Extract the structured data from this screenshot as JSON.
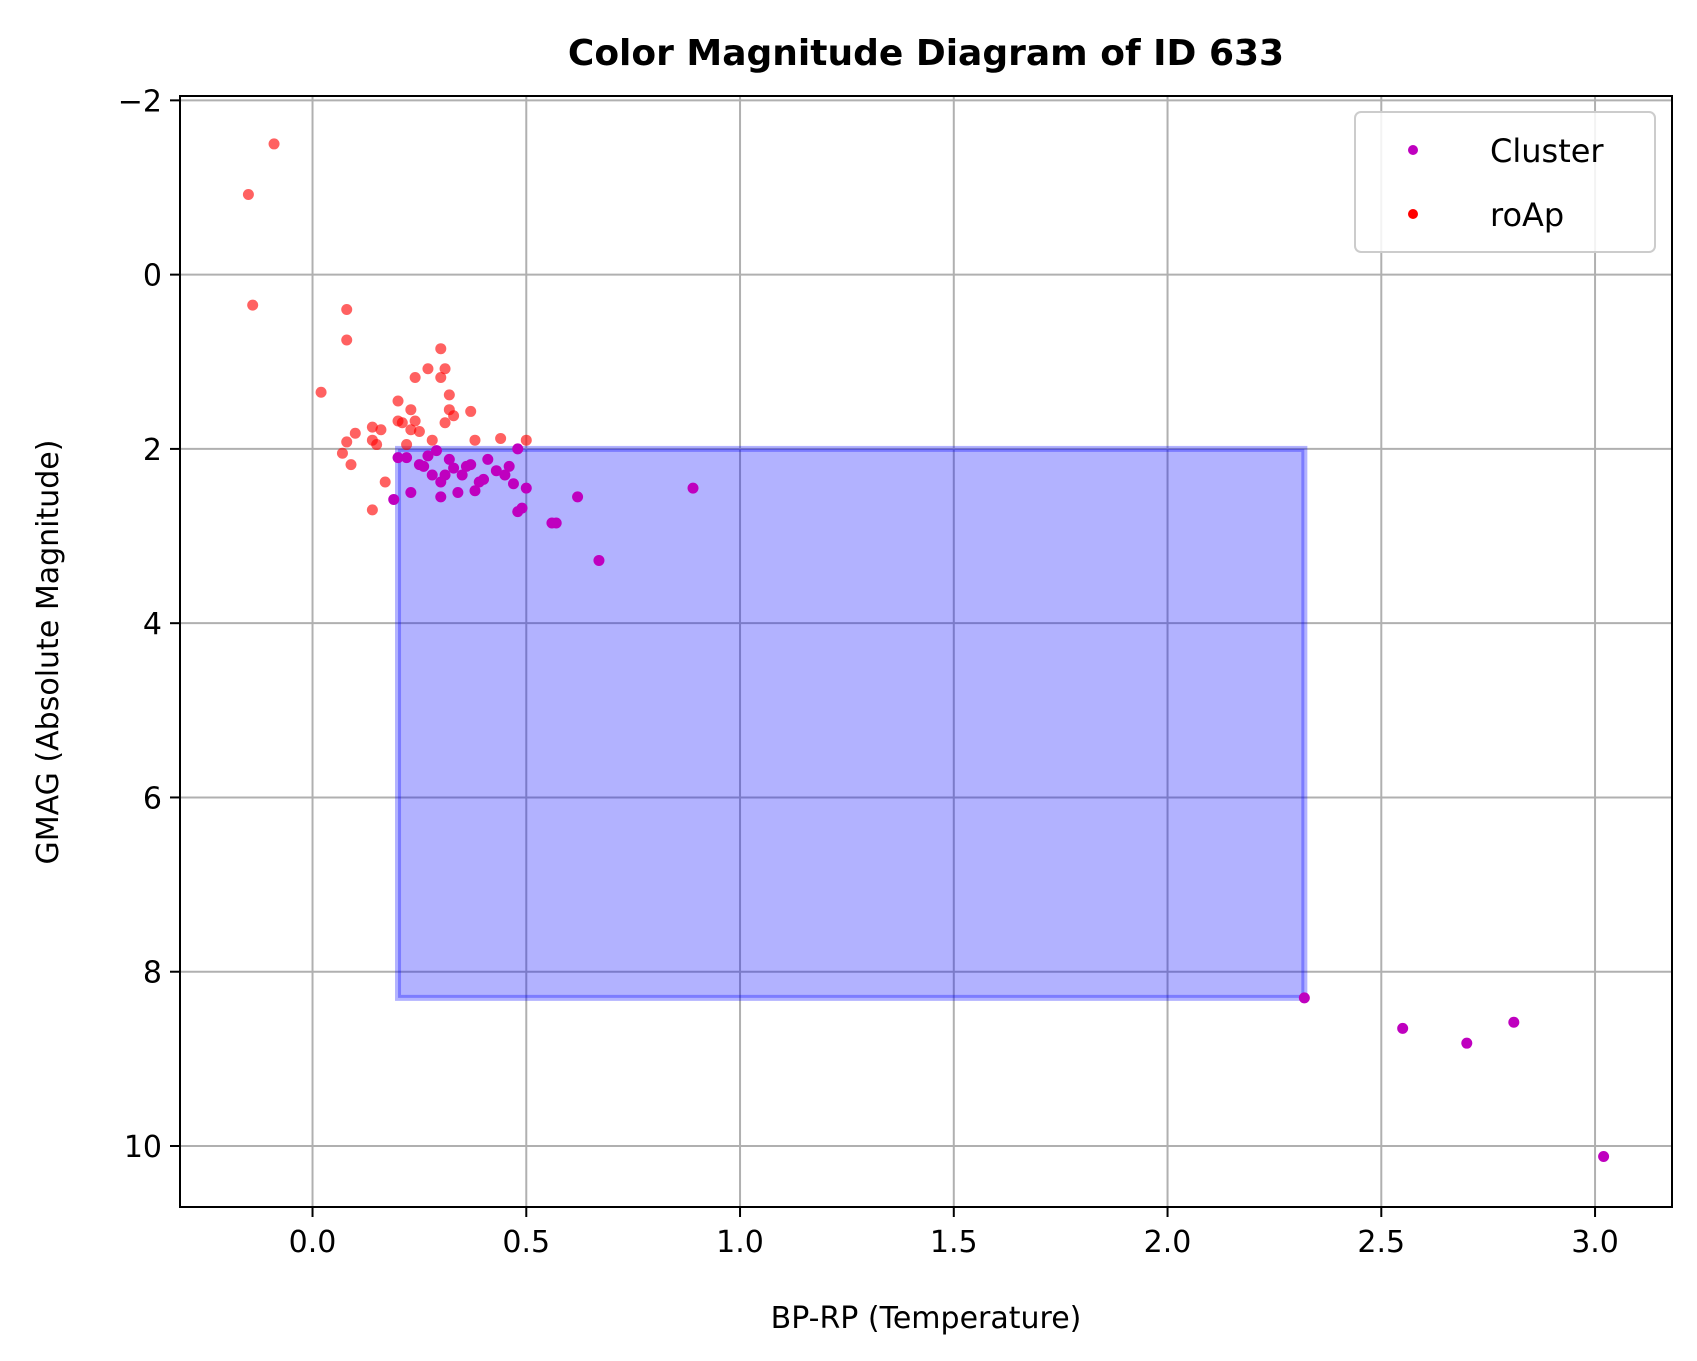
{
  "chart_data": {
    "type": "scatter",
    "title": "Color Magnitude Diagram of ID 633",
    "xlabel": "BP-RP (Temperature)",
    "ylabel": "GMAG (Absolute Magnitude)",
    "xlim": [
      -0.31,
      3.18
    ],
    "ylim": [
      10.7,
      -2.05
    ],
    "y_inverted": true,
    "grid": true,
    "legend_position": "top-right",
    "x_ticks": [
      0.0,
      0.5,
      1.0,
      1.5,
      2.0,
      2.5,
      3.0
    ],
    "x_tick_labels": [
      "0.0",
      "0.5",
      "1.0",
      "1.5",
      "2.0",
      "2.5",
      "3.0"
    ],
    "y_ticks": [
      -2,
      0,
      2,
      4,
      6,
      8,
      10
    ],
    "y_tick_labels": [
      "−2",
      "0",
      "2",
      "4",
      "6",
      "8",
      "10"
    ],
    "region": {
      "x0": 0.2,
      "x1": 2.32,
      "y0": 2.0,
      "y1": 8.3,
      "color": "#0000ff",
      "opacity": 0.3
    },
    "series": [
      {
        "name": "Cluster",
        "color": "#bf00bf",
        "points": [
          [
            2.32,
            8.3
          ],
          [
            2.55,
            8.65
          ],
          [
            2.7,
            8.82
          ],
          [
            2.81,
            8.58
          ],
          [
            3.02,
            10.12
          ],
          [
            0.89,
            2.45
          ],
          [
            0.67,
            3.28
          ],
          [
            0.62,
            2.55
          ],
          [
            0.57,
            2.85
          ],
          [
            0.56,
            2.85
          ],
          [
            0.5,
            2.45
          ],
          [
            0.49,
            2.68
          ],
          [
            0.48,
            2.72
          ],
          [
            0.47,
            2.4
          ],
          [
            0.45,
            2.3
          ],
          [
            0.43,
            2.25
          ],
          [
            0.4,
            2.35
          ],
          [
            0.38,
            2.48
          ],
          [
            0.36,
            2.2
          ],
          [
            0.35,
            2.3
          ],
          [
            0.33,
            2.22
          ],
          [
            0.31,
            2.3
          ],
          [
            0.3,
            2.55
          ],
          [
            0.3,
            2.38
          ],
          [
            0.28,
            2.3
          ],
          [
            0.26,
            2.2
          ],
          [
            0.25,
            2.18
          ],
          [
            0.23,
            2.5
          ],
          [
            0.22,
            2.1
          ],
          [
            0.2,
            2.1
          ],
          [
            0.19,
            2.58
          ],
          [
            0.34,
            2.5
          ],
          [
            0.27,
            2.08
          ],
          [
            0.29,
            2.02
          ],
          [
            0.32,
            2.12
          ],
          [
            0.37,
            2.18
          ],
          [
            0.41,
            2.12
          ],
          [
            0.46,
            2.2
          ],
          [
            0.48,
            2.0
          ],
          [
            0.39,
            2.38
          ]
        ]
      },
      {
        "name": "roAp",
        "color": "#ff0000",
        "points": [
          [
            -0.09,
            -1.5
          ],
          [
            -0.15,
            -0.92
          ],
          [
            -0.14,
            0.35
          ],
          [
            0.08,
            0.4
          ],
          [
            0.08,
            0.75
          ],
          [
            0.02,
            1.35
          ],
          [
            0.3,
            0.85
          ],
          [
            0.27,
            1.08
          ],
          [
            0.31,
            1.08
          ],
          [
            0.3,
            1.18
          ],
          [
            0.24,
            1.18
          ],
          [
            0.32,
            1.38
          ],
          [
            0.32,
            1.55
          ],
          [
            0.33,
            1.62
          ],
          [
            0.37,
            1.57
          ],
          [
            0.2,
            1.45
          ],
          [
            0.23,
            1.55
          ],
          [
            0.24,
            1.68
          ],
          [
            0.21,
            1.7
          ],
          [
            0.31,
            1.7
          ],
          [
            0.14,
            1.75
          ],
          [
            0.16,
            1.78
          ],
          [
            0.23,
            1.78
          ],
          [
            0.25,
            1.8
          ],
          [
            0.28,
            1.9
          ],
          [
            0.1,
            1.82
          ],
          [
            0.14,
            1.9
          ],
          [
            0.15,
            1.95
          ],
          [
            0.08,
            1.92
          ],
          [
            0.38,
            1.9
          ],
          [
            0.44,
            1.88
          ],
          [
            0.5,
            1.9
          ],
          [
            0.07,
            2.05
          ],
          [
            0.09,
            2.18
          ],
          [
            0.17,
            2.38
          ],
          [
            0.14,
            2.7
          ],
          [
            0.2,
            1.68
          ],
          [
            0.22,
            1.95
          ]
        ]
      }
    ]
  }
}
